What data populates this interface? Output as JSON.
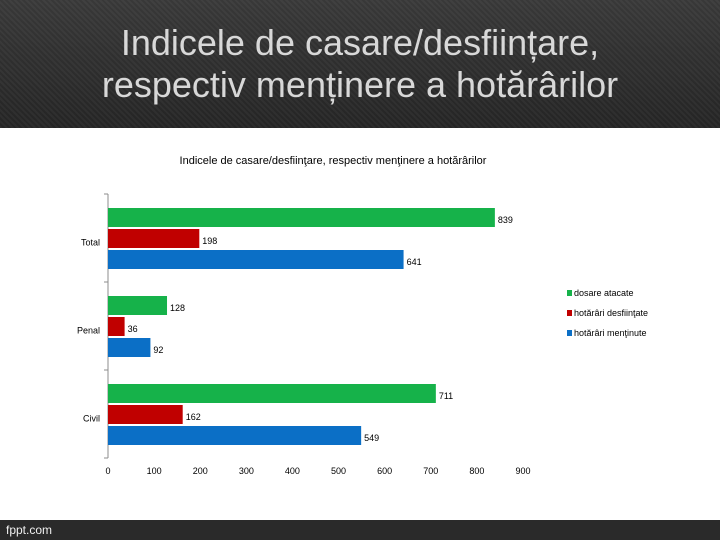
{
  "slide": {
    "title_line1": "Indicele de casare/desființare,",
    "title_line2": "respectiv menținere a hotărârilor",
    "footer": "fppt.com"
  },
  "chart_data": {
    "type": "bar",
    "orientation": "horizontal",
    "title": "Indicele de casare/desfiinţare, respectiv menţinere a hotărârilor",
    "categories": [
      "Total",
      "Penal",
      "Civil"
    ],
    "series": [
      {
        "name": "dosare atacate",
        "color": "#16b24a",
        "values": [
          839,
          128,
          711
        ]
      },
      {
        "name": "hotărâri desfiinţate",
        "color": "#c00000",
        "values": [
          198,
          36,
          162
        ]
      },
      {
        "name": "hotărâri menţinute",
        "color": "#0b6fc6",
        "values": [
          641,
          92,
          549
        ]
      }
    ],
    "xlim": [
      0,
      900
    ],
    "xticks": [
      "0",
      "100",
      "200",
      "300",
      "400",
      "500",
      "600",
      "700",
      "800",
      "900"
    ],
    "legend": "right"
  }
}
